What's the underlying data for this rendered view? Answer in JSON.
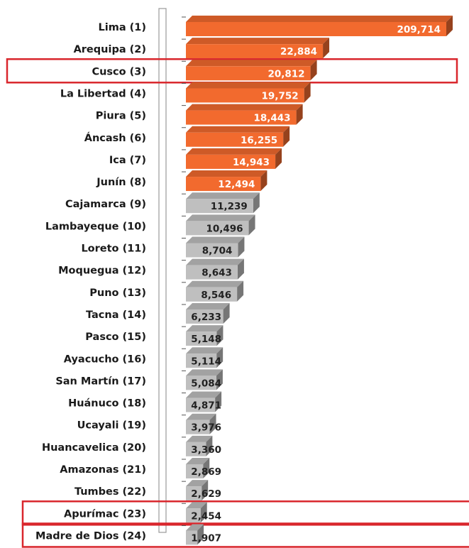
{
  "chart_data": {
    "type": "hbar3d",
    "categories": [
      "Lima (1)",
      "Arequipa (2)",
      "Cusco (3)",
      "La Libertad (4)",
      "Piura (5)",
      "Áncash (6)",
      "Ica (7)",
      "Junín (8)",
      "Cajamarca (9)",
      "Lambayeque (10)",
      "Loreto (11)",
      "Moquegua (12)",
      "Puno (13)",
      "Tacna (14)",
      "Pasco (15)",
      "Ayacucho (16)",
      "San Martín (17)",
      "Huánuco (18)",
      "Ucayali (19)",
      "Huancavelica (20)",
      "Amazonas (21)",
      "Tumbes (22)",
      "Apurímac (23)",
      "Madre de Dios (24)"
    ],
    "values": [
      209714,
      22884,
      20812,
      19752,
      18443,
      16255,
      14943,
      12494,
      11239,
      10496,
      8704,
      8643,
      8546,
      6233,
      5148,
      5114,
      5084,
      4871,
      3976,
      3360,
      2869,
      2629,
      2454,
      1907
    ],
    "value_labels": [
      "209,714",
      "22,884",
      "20,812",
      "19,752",
      "18,443",
      "16,255",
      "14,943",
      "12,494",
      "11,239",
      "10,496",
      "8,704",
      "8,643",
      "8,546",
      "6,233",
      "5,148",
      "5,114",
      "5,084",
      "4,871",
      "3,976",
      "3,360",
      "2,869",
      "2,629",
      "2,454",
      "1,907"
    ],
    "colors": [
      "#f26a2e",
      "#f26a2e",
      "#f26a2e",
      "#f26a2e",
      "#f26a2e",
      "#f26a2e",
      "#f26a2e",
      "#f26a2e",
      "#bfbfbf",
      "#bfbfbf",
      "#bfbfbf",
      "#bfbfbf",
      "#bfbfbf",
      "#bfbfbf",
      "#bfbfbf",
      "#bfbfbf",
      "#bfbfbf",
      "#bfbfbf",
      "#bfbfbf",
      "#bfbfbf",
      "#bfbfbf",
      "#bfbfbf",
      "#bfbfbf",
      "#bfbfbf"
    ],
    "value_label_colors": [
      "#ffffff",
      "#ffffff",
      "#ffffff",
      "#ffffff",
      "#ffffff",
      "#ffffff",
      "#ffffff",
      "#ffffff",
      "#222222",
      "#222222",
      "#222222",
      "#222222",
      "#222222",
      "#222222",
      "#222222",
      "#222222",
      "#222222",
      "#222222",
      "#222222",
      "#222222",
      "#222222",
      "#222222",
      "#222222",
      "#222222"
    ],
    "highlighted": [
      false,
      false,
      true,
      false,
      false,
      false,
      false,
      false,
      false,
      false,
      false,
      false,
      false,
      false,
      false,
      false,
      false,
      false,
      false,
      false,
      false,
      false,
      true,
      true
    ],
    "highlight_color": "#d9262c",
    "xlim": [
      0,
      43500
    ]
  }
}
